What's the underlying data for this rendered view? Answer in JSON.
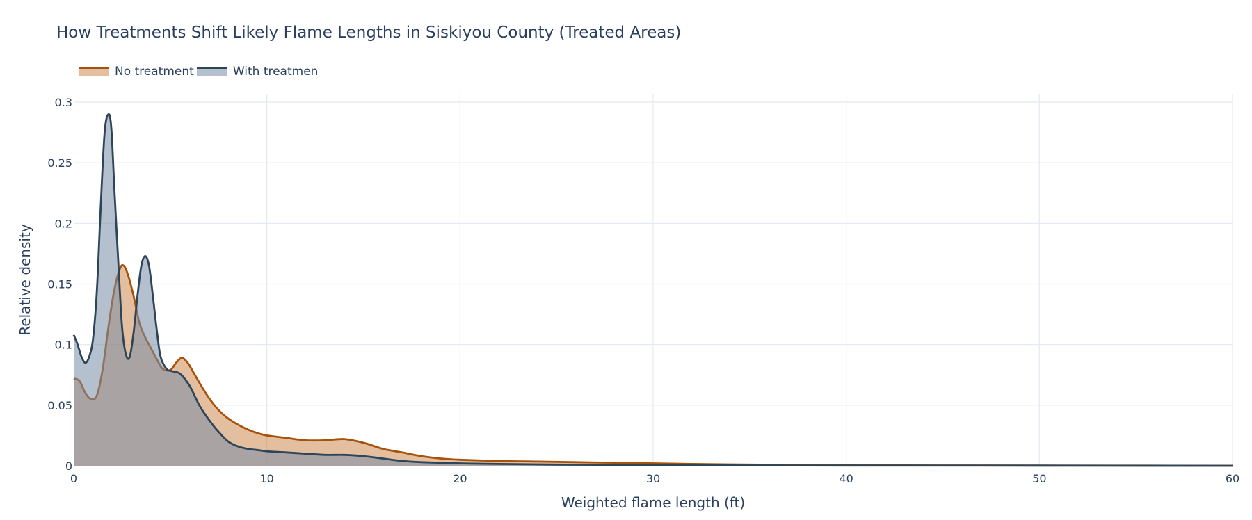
{
  "chart_data": {
    "type": "area",
    "title": "How Treatments Shift Likely Flame Lengths in Siskiyou County (Treated Areas)",
    "xlabel": "Weighted flame length (ft)",
    "ylabel": "Relative density",
    "xlim": [
      0,
      60
    ],
    "ylim": [
      0,
      0.3
    ],
    "xticks": [
      0,
      10,
      20,
      30,
      40,
      50,
      60
    ],
    "xtick_labels": [
      "0",
      "10",
      "20",
      "30",
      "40",
      "50",
      "60"
    ],
    "yticks": [
      0,
      0.05,
      0.1,
      0.15,
      0.2,
      0.25,
      0.3
    ],
    "ytick_labels": [
      "0",
      "0.05",
      "0.1",
      "0.15",
      "0.2",
      "0.25",
      "0.3"
    ],
    "grid": true,
    "legend_position": "top-left, horizontal",
    "series": [
      {
        "name": "No treatment",
        "color": "#a6520a",
        "fill": "rgba(201,128,64,0.5)",
        "x": [
          0,
          0.3,
          0.6,
          0.9,
          1.2,
          1.5,
          1.8,
          2.1,
          2.4,
          2.6,
          2.8,
          3.1,
          3.4,
          3.7,
          4.0,
          4.3,
          4.6,
          5.0,
          5.3,
          5.6,
          5.9,
          6.2,
          6.6,
          7.0,
          7.5,
          8.0,
          8.5,
          9.0,
          9.5,
          10,
          11,
          12,
          13,
          14,
          15,
          16,
          17,
          18,
          19,
          20,
          22,
          24,
          26,
          28,
          30,
          32,
          35,
          38,
          40,
          45,
          50,
          55,
          60
        ],
        "y": [
          0.072,
          0.07,
          0.06,
          0.055,
          0.058,
          0.08,
          0.115,
          0.145,
          0.163,
          0.165,
          0.158,
          0.14,
          0.118,
          0.106,
          0.097,
          0.088,
          0.08,
          0.079,
          0.085,
          0.089,
          0.085,
          0.077,
          0.066,
          0.056,
          0.046,
          0.039,
          0.034,
          0.03,
          0.027,
          0.025,
          0.023,
          0.021,
          0.021,
          0.022,
          0.019,
          0.014,
          0.011,
          0.008,
          0.006,
          0.005,
          0.004,
          0.0035,
          0.003,
          0.0025,
          0.002,
          0.0015,
          0.001,
          0.0007,
          0.0005,
          0.0003,
          0.0002,
          0.0001,
          0
        ]
      },
      {
        "name": "With treatmen",
        "color": "#2e4559",
        "fill": "rgba(120,140,165,0.55)",
        "x": [
          0,
          0.2,
          0.4,
          0.6,
          0.8,
          1.0,
          1.2,
          1.4,
          1.6,
          1.8,
          1.95,
          2.1,
          2.3,
          2.5,
          2.7,
          2.9,
          3.1,
          3.3,
          3.5,
          3.7,
          3.9,
          4.1,
          4.3,
          4.5,
          4.8,
          5.1,
          5.5,
          6.0,
          6.5,
          7.0,
          7.5,
          8.0,
          8.5,
          9.0,
          9.5,
          10,
          11,
          12,
          13,
          14,
          15,
          16,
          17,
          18,
          20,
          22,
          25,
          30,
          35,
          40,
          50,
          60
        ],
        "y": [
          0.108,
          0.1,
          0.09,
          0.085,
          0.09,
          0.105,
          0.145,
          0.215,
          0.275,
          0.29,
          0.278,
          0.23,
          0.17,
          0.115,
          0.092,
          0.09,
          0.11,
          0.14,
          0.165,
          0.173,
          0.165,
          0.14,
          0.112,
          0.09,
          0.08,
          0.078,
          0.076,
          0.066,
          0.05,
          0.038,
          0.028,
          0.02,
          0.016,
          0.014,
          0.013,
          0.012,
          0.011,
          0.01,
          0.009,
          0.009,
          0.008,
          0.006,
          0.004,
          0.003,
          0.002,
          0.0015,
          0.001,
          0.0006,
          0.0003,
          0.0002,
          0.0001,
          0
        ]
      }
    ]
  }
}
